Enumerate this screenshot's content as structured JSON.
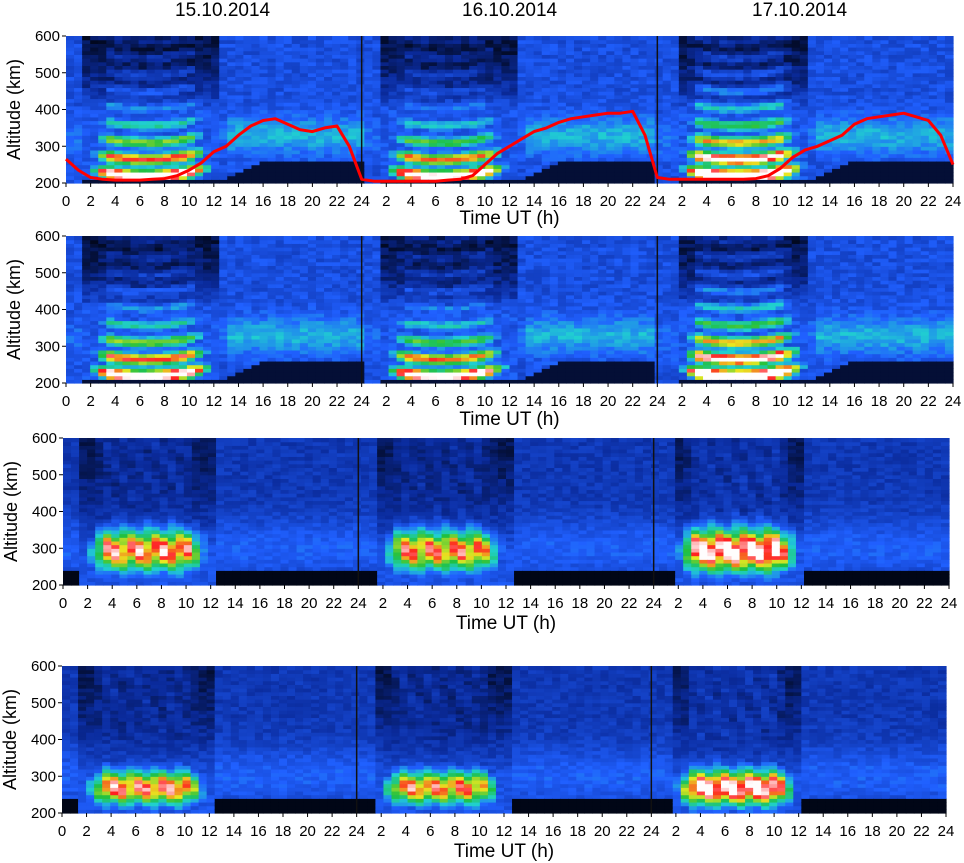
{
  "dates": [
    "15.10.2014",
    "16.10.2014",
    "17.10.2014"
  ],
  "chart_data": [
    {
      "type": "heatmap",
      "title": "",
      "xlabel": "Time UT (h)",
      "ylabel": "Altitude (km)",
      "x_tick_labels": [
        "0",
        "2",
        "4",
        "6",
        "8",
        "10",
        "12",
        "14",
        "16",
        "18",
        "20",
        "22",
        "24",
        "2",
        "4",
        "6",
        "8",
        "10",
        "12",
        "14",
        "16",
        "18",
        "20",
        "22",
        "24",
        "2",
        "4",
        "6",
        "8",
        "10",
        "12",
        "14",
        "16",
        "18",
        "20",
        "22",
        "24"
      ],
      "y_ticks": [
        200,
        300,
        400,
        500,
        600
      ],
      "ylim": [
        200,
        600
      ],
      "xlim": [
        0,
        72
      ],
      "colormap": [
        "#000000",
        "#0a2a9a",
        "#2060ff",
        "#20d0d0",
        "#20c040",
        "#e8e820",
        "#ff2020",
        "#ffffff"
      ],
      "style": "layered",
      "series": [
        {
          "color": "#ff0000",
          "x": [
            0,
            1,
            2,
            3,
            4,
            5,
            6,
            7,
            8,
            9,
            10,
            11,
            12,
            13,
            14,
            15,
            16,
            17,
            18,
            19,
            20,
            21,
            22,
            23,
            24,
            25,
            26,
            27,
            28,
            29,
            30,
            31,
            32,
            33,
            34,
            35,
            36,
            37,
            38,
            39,
            40,
            41,
            42,
            43,
            44,
            45,
            46,
            47,
            48,
            49,
            50,
            51,
            52,
            53,
            54,
            55,
            56,
            57,
            58,
            59,
            60,
            61,
            62,
            63,
            64,
            65,
            66,
            67,
            68,
            69,
            70,
            71,
            72
          ],
          "values": [
            265,
            235,
            215,
            210,
            208,
            208,
            208,
            210,
            212,
            220,
            235,
            255,
            285,
            300,
            330,
            355,
            370,
            375,
            360,
            345,
            340,
            350,
            355,
            300,
            210,
            205,
            205,
            205,
            205,
            205,
            205,
            208,
            210,
            220,
            250,
            280,
            300,
            320,
            340,
            350,
            365,
            375,
            380,
            385,
            390,
            390,
            395,
            330,
            215,
            210,
            210,
            210,
            210,
            210,
            210,
            210,
            212,
            220,
            240,
            270,
            290,
            300,
            315,
            330,
            360,
            375,
            380,
            385,
            390,
            380,
            370,
            330,
            250
          ]
        }
      ]
    },
    {
      "type": "heatmap",
      "title": "",
      "xlabel": "Time UT (h)",
      "ylabel": "Altitude (km)",
      "x_tick_labels": [
        "0",
        "2",
        "4",
        "6",
        "8",
        "10",
        "12",
        "14",
        "16",
        "18",
        "20",
        "22",
        "24",
        "2",
        "4",
        "6",
        "8",
        "10",
        "12",
        "14",
        "16",
        "18",
        "20",
        "22",
        "24",
        "2",
        "4",
        "6",
        "8",
        "10",
        "12",
        "14",
        "16",
        "18",
        "20",
        "22",
        "24"
      ],
      "y_ticks": [
        200,
        300,
        400,
        500,
        600
      ],
      "ylim": [
        200,
        600
      ],
      "xlim": [
        0,
        72
      ],
      "colormap": [
        "#000000",
        "#0a2a9a",
        "#2060ff",
        "#20d0d0",
        "#20c040",
        "#e8e820",
        "#ff2020",
        "#ffffff"
      ],
      "style": "layered"
    },
    {
      "type": "heatmap",
      "title": "",
      "xlabel": "Time UT (h)",
      "ylabel": "Altitude (km)",
      "x_tick_labels": [
        "0",
        "2",
        "4",
        "6",
        "8",
        "10",
        "12",
        "14",
        "16",
        "18",
        "20",
        "22",
        "24",
        "2",
        "4",
        "6",
        "8",
        "10",
        "12",
        "14",
        "16",
        "18",
        "20",
        "22",
        "24",
        "2",
        "4",
        "6",
        "8",
        "10",
        "12",
        "14",
        "16",
        "18",
        "20",
        "22",
        "24"
      ],
      "y_ticks": [
        200,
        300,
        400,
        500,
        600
      ],
      "ylim": [
        200,
        600
      ],
      "xlim": [
        0,
        72
      ],
      "colormap": [
        "#000000",
        "#0a2a9a",
        "#2060ff",
        "#20d0d0",
        "#20c040",
        "#e8e820",
        "#ff2020",
        "#ffffff"
      ],
      "style": "blob"
    },
    {
      "type": "heatmap",
      "title": "",
      "xlabel": "Time UT (h)",
      "ylabel": "Altitude (km)",
      "x_tick_labels": [
        "0",
        "2",
        "4",
        "6",
        "8",
        "10",
        "12",
        "14",
        "16",
        "18",
        "20",
        "22",
        "24",
        "2",
        "4",
        "6",
        "8",
        "10",
        "12",
        "14",
        "16",
        "18",
        "20",
        "22",
        "24",
        "2",
        "4",
        "6",
        "8",
        "10",
        "12",
        "14",
        "16",
        "18",
        "20",
        "22",
        "24"
      ],
      "y_ticks": [
        200,
        300,
        400,
        500,
        600
      ],
      "ylim": [
        200,
        600
      ],
      "xlim": [
        0,
        72
      ],
      "colormap": [
        "#000000",
        "#0a2a9a",
        "#2060ff",
        "#20d0d0",
        "#20c040",
        "#e8e820",
        "#ff2020",
        "#ffffff"
      ],
      "style": "blob-low"
    }
  ]
}
